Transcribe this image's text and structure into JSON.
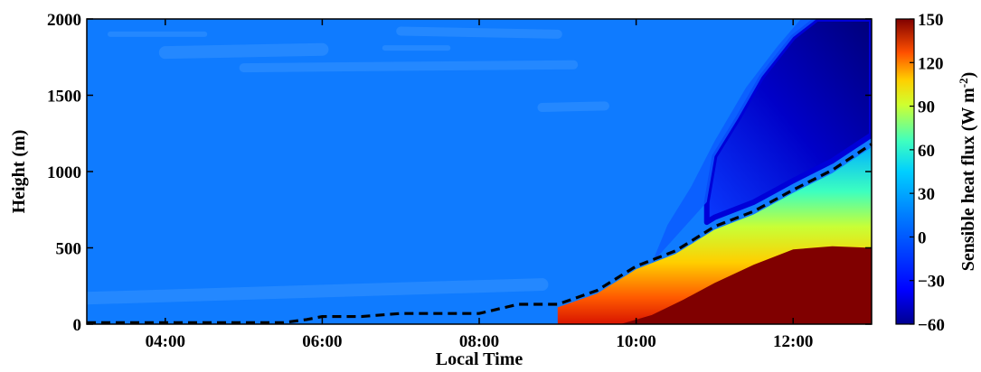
{
  "chart_data": {
    "type": "heatmap",
    "title": "",
    "xlabel": "Local Time",
    "ylabel": "Height (m)",
    "x_tick_labels": [
      "04:00",
      "06:00",
      "08:00",
      "10:00",
      "12:00"
    ],
    "x_tick_hours": [
      4,
      6,
      8,
      10,
      12
    ],
    "xlim_hours": [
      3.0,
      13.0
    ],
    "y_ticks": [
      0,
      500,
      1000,
      1500,
      2000
    ],
    "ylim": [
      0,
      2000
    ],
    "colorbar": {
      "label_main": "Sensible heat flux (W m",
      "label_sup": "-2",
      "label_close": ")",
      "range": [
        -60,
        150
      ],
      "tick_values": [
        -60,
        -30,
        0,
        30,
        60,
        90,
        120,
        150
      ],
      "tick_labels": [
        "−60",
        "−30",
        "0",
        "30",
        "60",
        "90",
        "120",
        "150"
      ],
      "colormap": "jet"
    },
    "boundary_layer_height": {
      "style": "dashed black",
      "x_hours": [
        3.0,
        5.5,
        5.8,
        6.0,
        6.5,
        7.0,
        7.5,
        8.0,
        8.5,
        9.0,
        9.5,
        10.0,
        10.5,
        11.0,
        11.5,
        12.0,
        12.5,
        13.0
      ],
      "height_m": [
        10,
        10,
        30,
        50,
        50,
        70,
        70,
        70,
        130,
        130,
        220,
        380,
        480,
        640,
        740,
        880,
        1010,
        1180
      ]
    },
    "field_summary": {
      "background_flux": 0,
      "surface_heating_start_hour": 9.0,
      "max_flux_region": "near surface after 11:00, up to about 500 m at 12:00",
      "negative_flux_region": "above boundary layer after 10:30, strongest near -60"
    }
  }
}
